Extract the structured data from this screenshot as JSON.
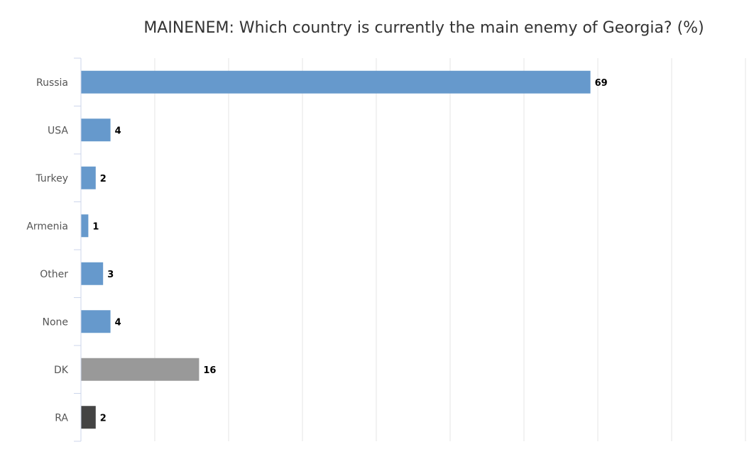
{
  "chart_data": {
    "type": "bar",
    "orientation": "horizontal",
    "title": "MAINENEM: Which country is currently the main enemy of Georgia? (%)",
    "xlabel": "",
    "ylabel": "",
    "categories": [
      "Russia",
      "USA",
      "Turkey",
      "Armenia",
      "Other",
      "None",
      "DK",
      "RA"
    ],
    "values": [
      69,
      4,
      2,
      1,
      3,
      4,
      16,
      2
    ],
    "bar_colors": [
      "#6699cc",
      "#6699cc",
      "#6699cc",
      "#6699cc",
      "#6699cc",
      "#6699cc",
      "#999999",
      "#444444"
    ],
    "xlim": [
      0,
      90
    ],
    "grid": true,
    "grid_step": 10,
    "legend": "none",
    "data_labels": true
  }
}
